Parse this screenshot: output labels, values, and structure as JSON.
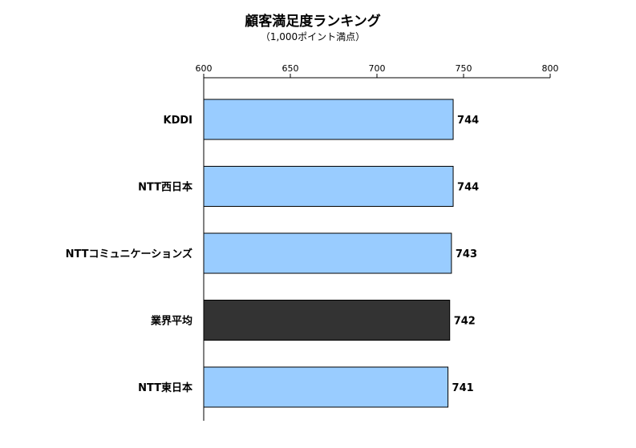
{
  "colors": {
    "bar_default": "#99ccff",
    "bar_highlight": "#333333",
    "bar_stroke": "#000000"
  },
  "chart_data": {
    "type": "bar",
    "orientation": "horizontal",
    "title": "顧客満足度ランキング",
    "subtitle": "（1,000ポイント満点）",
    "xlim": [
      600,
      800
    ],
    "ticks": [
      600,
      650,
      700,
      750,
      800
    ],
    "tick_labels": [
      "600",
      "650",
      "700",
      "750",
      "800"
    ],
    "grid": false,
    "axis_position": "top",
    "categories": [
      "KDDI",
      "NTT西日本",
      "NTTコミュニケーションズ",
      "業界平均",
      "NTT東日本"
    ],
    "values": [
      744,
      744,
      743,
      742,
      741
    ],
    "value_labels": [
      "744",
      "744",
      "743",
      "742",
      "741"
    ],
    "highlight_index": 3
  }
}
